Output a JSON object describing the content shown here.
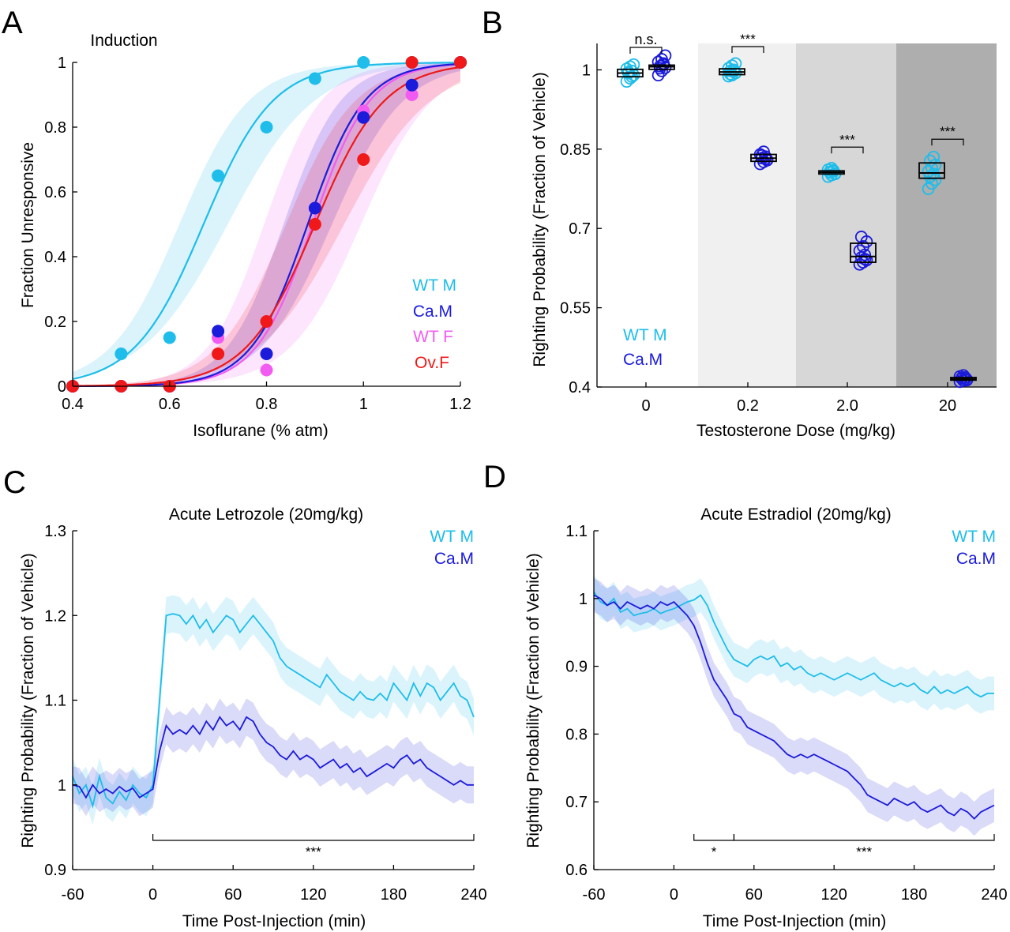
{
  "colors": {
    "wt_m": "#1ebdea",
    "ca_m": "#1b1bdb",
    "wt_f": "#f25bf2",
    "ov_f": "#f01818",
    "bg_light": "#f0f0f0",
    "bg_mid": "#d7d7d7",
    "bg_dark": "#aeaeae"
  },
  "chart_data": [
    {
      "panel": "A",
      "type": "scatter",
      "title": "Induction",
      "xlabel": "Isoflurane (% atm)",
      "ylabel": "Fraction Unresponsive",
      "xlim": [
        0.4,
        1.2
      ],
      "ylim": [
        0,
        1
      ],
      "xticks": [
        0.4,
        0.6,
        0.8,
        1,
        1.2
      ],
      "xtick_labels": [
        "0.4",
        "0.6",
        "0.8",
        "1",
        "1.2"
      ],
      "yticks": [
        0,
        0.2,
        0.4,
        0.6,
        0.8,
        1
      ],
      "ytick_labels": [
        "0",
        "0.2",
        "0.4",
        "0.6",
        "0.8",
        "1"
      ],
      "legend": [
        "WT M",
        "Ca.M",
        "WT F",
        "Ov.F"
      ],
      "series": [
        {
          "name": "WT M",
          "color_key": "wt_m",
          "x": [
            0.4,
            0.5,
            0.6,
            0.7,
            0.8,
            0.9,
            1.0,
            1.1,
            1.2
          ],
          "y": [
            0,
            0.1,
            0.15,
            0.65,
            0.8,
            0.95,
            1.0,
            1.0,
            1.0
          ],
          "ec50": 0.67,
          "slope": 14,
          "ci": 0.05
        },
        {
          "name": "WT F",
          "color_key": "wt_f",
          "x": [
            0.4,
            0.5,
            0.6,
            0.7,
            0.8,
            0.9,
            1.0,
            1.1,
            1.2
          ],
          "y": [
            0,
            0,
            0,
            0.15,
            0.05,
            0.55,
            0.85,
            0.9,
            1.0
          ],
          "ec50": 0.895,
          "slope": 17,
          "ci": 0.1
        },
        {
          "name": "Ca.M",
          "color_key": "ca_m",
          "x": [
            0.4,
            0.5,
            0.6,
            0.7,
            0.8,
            0.9,
            1.0,
            1.1,
            1.2
          ],
          "y": [
            0,
            0,
            0,
            0.17,
            0.1,
            0.55,
            0.83,
            0.93,
            1.0
          ],
          "ec50": 0.885,
          "slope": 17,
          "ci": 0.05
        },
        {
          "name": "Ov.F",
          "color_key": "ov_f",
          "x": [
            0.4,
            0.5,
            0.6,
            0.7,
            0.8,
            0.9,
            1.0,
            1.1,
            1.2
          ],
          "y": [
            0,
            0,
            0,
            0.1,
            0.2,
            0.5,
            0.7,
            1.0,
            1.0
          ],
          "ec50": 0.9,
          "slope": 14,
          "ci": 0.06
        }
      ]
    },
    {
      "panel": "B",
      "type": "box",
      "xlabel": "Testosterone Dose (mg/kg)",
      "ylabel": "Righting Probability (Fraction of Vehicle)",
      "ylim": [
        0.4,
        1.05
      ],
      "yticks": [
        0.4,
        0.55,
        0.7,
        0.85,
        1
      ],
      "ytick_labels": [
        "0.4",
        "0.55",
        "0.7",
        "0.85",
        "1"
      ],
      "categories": [
        "0",
        "0.2",
        "2.0",
        "20"
      ],
      "legend": [
        "WT M",
        "Ca.M"
      ],
      "groups": [
        {
          "category": "0",
          "shade": "",
          "wt_m": {
            "median": 0.994,
            "q1": 0.987,
            "q3": 1.001,
            "points": [
              0.978,
              0.984,
              0.99,
              0.994,
              0.998,
              1.002,
              1.006,
              1.01,
              0.996,
              0.987
            ]
          },
          "ca_m": {
            "median": 1.006,
            "q1": 1.001,
            "q3": 1.009,
            "points": [
              0.99,
              0.998,
              1.004,
              1.007,
              1.01,
              1.015,
              1.02,
              1.027,
              1.003,
              1.012
            ]
          },
          "sig": "n.s."
        },
        {
          "category": "0.2",
          "shade": "bg_light",
          "wt_m": {
            "median": 0.996,
            "q1": 0.991,
            "q3": 1.002,
            "points": [
              0.988,
              0.99,
              0.994,
              0.998,
              1.0,
              1.003,
              1.008,
              1.012,
              0.992,
              0.997
            ]
          },
          "ca_m": {
            "median": 0.833,
            "q1": 0.827,
            "q3": 0.84,
            "points": [
              0.822,
              0.826,
              0.83,
              0.833,
              0.836,
              0.84,
              0.845,
              0.829,
              0.838,
              0.832
            ]
          },
          "sig": "***"
        },
        {
          "category": "2.0",
          "shade": "bg_mid",
          "wt_m": {
            "median": 0.806,
            "q1": 0.803,
            "q3": 0.809,
            "points": [
              0.798,
              0.801,
              0.804,
              0.806,
              0.808,
              0.811,
              0.814,
              0.803,
              0.807,
              0.81
            ]
          },
          "ca_m": {
            "median": 0.647,
            "q1": 0.636,
            "q3": 0.672,
            "points": [
              0.632,
              0.636,
              0.64,
              0.645,
              0.65,
              0.658,
              0.666,
              0.675,
              0.684,
              0.642
            ]
          },
          "sig": "***"
        },
        {
          "category": "20",
          "shade": "bg_dark",
          "wt_m": {
            "median": 0.805,
            "q1": 0.795,
            "q3": 0.824,
            "points": [
              0.775,
              0.785,
              0.792,
              0.798,
              0.803,
              0.808,
              0.814,
              0.82,
              0.828,
              0.835
            ]
          },
          "ca_m": {
            "median": 0.415,
            "q1": 0.413,
            "q3": 0.418,
            "points": [
              0.41,
              0.412,
              0.414,
              0.416,
              0.418,
              0.42,
              0.422,
              0.413,
              0.417,
              0.415
            ]
          },
          "sig": "***"
        }
      ]
    },
    {
      "panel": "C",
      "type": "line",
      "title": "Acute Letrozole (20mg/kg)",
      "xlabel": "Time Post-Injection (min)",
      "ylabel": "Righting Probability (Fraction of Vehicle)",
      "xlim": [
        -60,
        240
      ],
      "ylim": [
        0.9,
        1.3
      ],
      "xticks": [
        -60,
        0,
        60,
        120,
        180,
        240
      ],
      "xtick_labels": [
        "-60",
        "0",
        "60",
        "120",
        "180",
        "240"
      ],
      "yticks": [
        0.9,
        1,
        1.1,
        1.2,
        1.3
      ],
      "ytick_labels": [
        "0.9",
        "1",
        "1.1",
        "1.2",
        "1.3"
      ],
      "legend": [
        "WT M",
        "Ca.M"
      ],
      "band": 0.022,
      "significance": [
        {
          "from": 0,
          "to": 240,
          "label": "***"
        }
      ],
      "series": [
        {
          "name": "WT M",
          "color_key": "wt_m",
          "x": [
            -60,
            -55,
            -50,
            -45,
            -40,
            -35,
            -30,
            -25,
            -20,
            -15,
            -10,
            -5,
            0,
            5,
            10,
            15,
            20,
            25,
            30,
            35,
            40,
            45,
            50,
            55,
            60,
            65,
            70,
            75,
            80,
            85,
            90,
            95,
            100,
            105,
            110,
            115,
            120,
            125,
            130,
            135,
            140,
            145,
            150,
            155,
            160,
            165,
            170,
            175,
            180,
            185,
            190,
            195,
            200,
            205,
            210,
            215,
            220,
            225,
            230,
            235,
            240
          ],
          "y": [
            1.01,
            0.99,
            1.0,
            0.975,
            1.01,
            0.985,
            0.978,
            0.992,
            0.982,
            1.0,
            0.99,
            0.985,
            1.0,
            1.1,
            1.2,
            1.202,
            1.2,
            1.19,
            1.2,
            1.185,
            1.195,
            1.18,
            1.19,
            1.2,
            1.195,
            1.18,
            1.19,
            1.2,
            1.19,
            1.18,
            1.17,
            1.15,
            1.14,
            1.135,
            1.13,
            1.125,
            1.12,
            1.115,
            1.13,
            1.12,
            1.11,
            1.105,
            1.1,
            1.11,
            1.102,
            1.1,
            1.108,
            1.1,
            1.12,
            1.11,
            1.1,
            1.12,
            1.105,
            1.12,
            1.115,
            1.1,
            1.11,
            1.12,
            1.105,
            1.1,
            1.08
          ]
        },
        {
          "name": "Ca.M",
          "color_key": "ca_m",
          "x": [
            -60,
            -55,
            -50,
            -45,
            -40,
            -35,
            -30,
            -25,
            -20,
            -15,
            -10,
            -5,
            0,
            5,
            10,
            15,
            20,
            25,
            30,
            35,
            40,
            45,
            50,
            55,
            60,
            65,
            70,
            75,
            80,
            85,
            90,
            95,
            100,
            105,
            110,
            115,
            120,
            125,
            130,
            135,
            140,
            145,
            150,
            155,
            160,
            165,
            170,
            175,
            180,
            185,
            190,
            195,
            200,
            205,
            210,
            215,
            220,
            225,
            230,
            235,
            240
          ],
          "y": [
            1.0,
            0.998,
            0.985,
            1.0,
            0.99,
            0.995,
            0.99,
            0.998,
            0.992,
            0.996,
            0.985,
            0.99,
            0.995,
            1.04,
            1.07,
            1.06,
            1.065,
            1.06,
            1.07,
            1.06,
            1.075,
            1.065,
            1.08,
            1.07,
            1.075,
            1.065,
            1.08,
            1.075,
            1.06,
            1.05,
            1.045,
            1.035,
            1.03,
            1.04,
            1.03,
            1.035,
            1.03,
            1.02,
            1.025,
            1.03,
            1.02,
            1.025,
            1.015,
            1.02,
            1.01,
            1.015,
            1.02,
            1.025,
            1.02,
            1.03,
            1.035,
            1.025,
            1.03,
            1.02,
            1.015,
            1.01,
            1.005,
            1.0,
            1.005,
            1.0,
            1.0
          ]
        }
      ]
    },
    {
      "panel": "D",
      "type": "line",
      "title": "Acute Estradiol (20mg/kg)",
      "xlabel": "Time Post-Injection (min)",
      "ylabel": "Righting Probability (Fraction of Vehicle)",
      "xlim": [
        -60,
        240
      ],
      "ylim": [
        0.6,
        1.1
      ],
      "xticks": [
        -60,
        0,
        60,
        120,
        180,
        240
      ],
      "xtick_labels": [
        "-60",
        "0",
        "60",
        "120",
        "180",
        "240"
      ],
      "yticks": [
        0.6,
        0.7,
        0.8,
        0.9,
        1,
        1.1
      ],
      "ytick_labels": [
        "0.6",
        "0.7",
        "0.8",
        "0.9",
        "1",
        "1.1"
      ],
      "legend": [
        "WT M",
        "Ca.M"
      ],
      "band": 0.025,
      "significance": [
        {
          "from": 15,
          "to": 45,
          "label": "*"
        },
        {
          "from": 45,
          "to": 240,
          "label": "***"
        }
      ],
      "series": [
        {
          "name": "WT M",
          "color_key": "wt_m",
          "x": [
            -60,
            -55,
            -50,
            -45,
            -40,
            -35,
            -30,
            -25,
            -20,
            -15,
            -10,
            -5,
            0,
            5,
            10,
            15,
            20,
            25,
            30,
            35,
            40,
            45,
            50,
            55,
            60,
            65,
            70,
            75,
            80,
            85,
            90,
            95,
            100,
            105,
            110,
            115,
            120,
            125,
            130,
            135,
            140,
            145,
            150,
            155,
            160,
            165,
            170,
            175,
            180,
            185,
            190,
            195,
            200,
            205,
            210,
            215,
            220,
            225,
            230,
            235,
            240
          ],
          "y": [
            1.01,
            0.995,
            0.99,
            1.0,
            0.98,
            0.985,
            0.975,
            0.978,
            0.98,
            0.985,
            0.978,
            0.982,
            0.985,
            0.99,
            0.995,
            0.998,
            1.005,
            0.99,
            0.965,
            0.945,
            0.925,
            0.91,
            0.905,
            0.9,
            0.91,
            0.915,
            0.91,
            0.915,
            0.9,
            0.905,
            0.895,
            0.9,
            0.89,
            0.885,
            0.89,
            0.885,
            0.88,
            0.885,
            0.89,
            0.885,
            0.88,
            0.885,
            0.89,
            0.88,
            0.875,
            0.87,
            0.875,
            0.87,
            0.875,
            0.865,
            0.86,
            0.87,
            0.86,
            0.865,
            0.86,
            0.865,
            0.87,
            0.86,
            0.855,
            0.86,
            0.86
          ]
        },
        {
          "name": "Ca.M",
          "color_key": "ca_m",
          "x": [
            -60,
            -55,
            -50,
            -45,
            -40,
            -35,
            -30,
            -25,
            -20,
            -15,
            -10,
            -5,
            0,
            5,
            10,
            15,
            20,
            25,
            30,
            35,
            40,
            45,
            50,
            55,
            60,
            65,
            70,
            75,
            80,
            85,
            90,
            95,
            100,
            105,
            110,
            115,
            120,
            125,
            130,
            135,
            140,
            145,
            150,
            155,
            160,
            165,
            170,
            175,
            180,
            185,
            190,
            195,
            200,
            205,
            210,
            215,
            220,
            225,
            230,
            235,
            240
          ],
          "y": [
            1.005,
            1.0,
            0.99,
            0.995,
            0.985,
            0.995,
            0.99,
            0.985,
            0.99,
            0.985,
            0.995,
            0.99,
            0.995,
            0.985,
            0.975,
            0.96,
            0.935,
            0.905,
            0.88,
            0.865,
            0.85,
            0.83,
            0.825,
            0.81,
            0.805,
            0.8,
            0.795,
            0.79,
            0.78,
            0.77,
            0.765,
            0.77,
            0.765,
            0.77,
            0.765,
            0.76,
            0.755,
            0.75,
            0.745,
            0.735,
            0.725,
            0.71,
            0.705,
            0.7,
            0.695,
            0.705,
            0.7,
            0.695,
            0.7,
            0.69,
            0.685,
            0.69,
            0.695,
            0.685,
            0.68,
            0.69,
            0.685,
            0.675,
            0.685,
            0.69,
            0.695
          ]
        }
      ]
    }
  ],
  "panels": {
    "A": {
      "letter": "A"
    },
    "B": {
      "letter": "B"
    },
    "C": {
      "letter": "C"
    },
    "D": {
      "letter": "D"
    }
  }
}
